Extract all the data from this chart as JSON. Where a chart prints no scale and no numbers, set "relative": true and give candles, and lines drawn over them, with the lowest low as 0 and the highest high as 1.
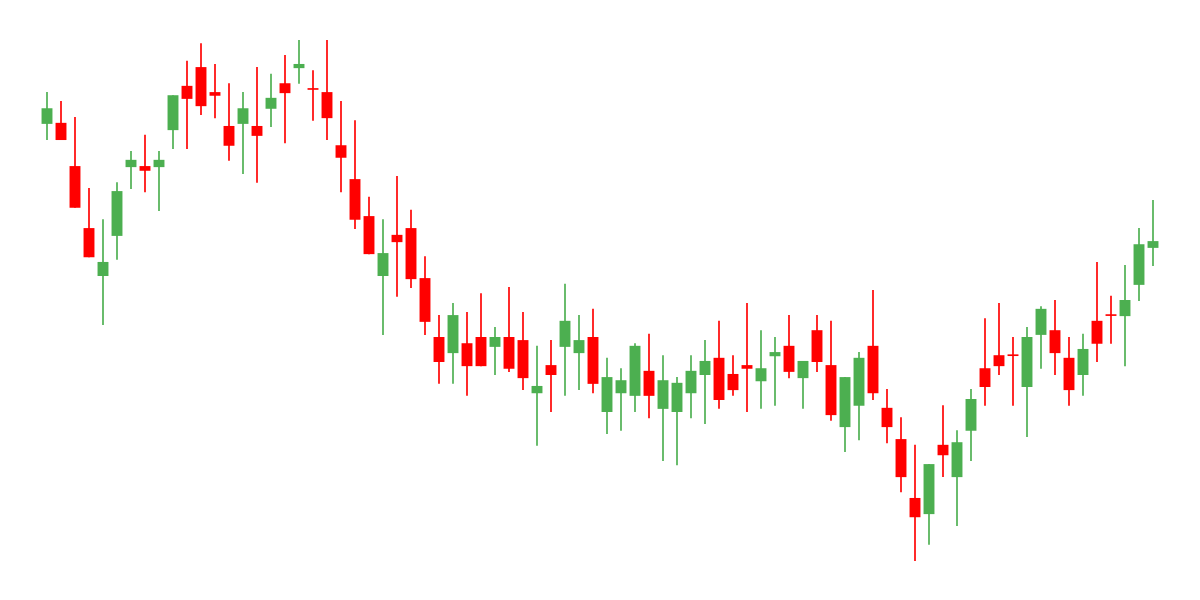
{
  "chart_data": {
    "type": "candlestick",
    "relative": true,
    "categories": [
      null,
      null,
      null,
      null,
      null,
      null,
      null,
      null,
      null,
      null,
      null,
      null,
      null,
      null,
      null,
      null,
      null,
      null,
      null,
      null,
      null,
      null,
      null,
      null,
      null,
      null,
      null,
      null,
      null,
      null,
      null,
      null,
      null,
      null,
      null,
      null,
      null,
      null,
      null,
      null,
      null,
      null,
      null,
      null,
      null,
      null,
      null,
      null,
      null,
      null,
      null,
      null,
      null,
      null,
      null,
      null,
      null,
      null,
      null,
      null,
      null,
      null,
      null,
      null,
      null,
      null,
      null,
      null,
      null,
      null,
      null,
      null,
      null,
      null,
      null,
      null,
      null,
      null,
      null,
      null
    ],
    "ohlc": [
      [
        0.839,
        0.9,
        0.808,
        0.869
      ],
      [
        0.841,
        0.883,
        0.808,
        0.808
      ],
      [
        0.758,
        0.852,
        0.678,
        0.678
      ],
      [
        0.639,
        0.716,
        0.583,
        0.583
      ],
      [
        0.547,
        0.656,
        0.453,
        0.574
      ],
      [
        0.624,
        0.727,
        0.578,
        0.71
      ],
      [
        0.756,
        0.787,
        0.714,
        0.77
      ],
      [
        0.758,
        0.818,
        0.708,
        0.749
      ],
      [
        0.756,
        0.787,
        0.672,
        0.77
      ],
      [
        0.827,
        0.894,
        0.791,
        0.894
      ],
      [
        0.912,
        0.96,
        0.791,
        0.887
      ],
      [
        0.948,
        0.994,
        0.856,
        0.873
      ],
      [
        0.9,
        0.954,
        0.85,
        0.893
      ],
      [
        0.835,
        0.917,
        0.768,
        0.797
      ],
      [
        0.839,
        0.9,
        0.743,
        0.869
      ],
      [
        0.835,
        0.948,
        0.726,
        0.816
      ],
      [
        0.868,
        0.935,
        0.833,
        0.889
      ],
      [
        0.917,
        0.971,
        0.802,
        0.898
      ],
      [
        0.946,
        1.0,
        0.916,
        0.954
      ],
      [
        0.906,
        0.942,
        0.845,
        0.906
      ],
      [
        0.9,
        1.0,
        0.808,
        0.85
      ],
      [
        0.798,
        0.883,
        0.708,
        0.774
      ],
      [
        0.733,
        0.846,
        0.637,
        0.655
      ],
      [
        0.662,
        0.699,
        0.589,
        0.589
      ],
      [
        0.547,
        0.656,
        0.434,
        0.591
      ],
      [
        0.626,
        0.739,
        0.507,
        0.612
      ],
      [
        0.639,
        0.674,
        0.524,
        0.541
      ],
      [
        0.543,
        0.585,
        0.434,
        0.459
      ],
      [
        0.43,
        0.472,
        0.34,
        0.382
      ],
      [
        0.399,
        0.495,
        0.34,
        0.472
      ],
      [
        0.418,
        0.478,
        0.317,
        0.374
      ],
      [
        0.43,
        0.514,
        0.374,
        0.374
      ],
      [
        0.411,
        0.449,
        0.357,
        0.43
      ],
      [
        0.43,
        0.526,
        0.363,
        0.369
      ],
      [
        0.424,
        0.478,
        0.328,
        0.351
      ],
      [
        0.322,
        0.413,
        0.221,
        0.336
      ],
      [
        0.376,
        0.424,
        0.286,
        0.357
      ],
      [
        0.411,
        0.532,
        0.317,
        0.461
      ],
      [
        0.399,
        0.472,
        0.328,
        0.424
      ],
      [
        0.43,
        0.484,
        0.322,
        0.34
      ],
      [
        0.286,
        0.39,
        0.244,
        0.353
      ],
      [
        0.322,
        0.37,
        0.25,
        0.347
      ],
      [
        0.317,
        0.418,
        0.286,
        0.413
      ],
      [
        0.365,
        0.436,
        0.274,
        0.317
      ],
      [
        0.292,
        0.395,
        0.192,
        0.347
      ],
      [
        0.286,
        0.353,
        0.184,
        0.342
      ],
      [
        0.322,
        0.395,
        0.274,
        0.365
      ],
      [
        0.357,
        0.424,
        0.263,
        0.384
      ],
      [
        0.39,
        0.461,
        0.292,
        0.309
      ],
      [
        0.359,
        0.395,
        0.317,
        0.328
      ],
      [
        0.376,
        0.495,
        0.286,
        0.369
      ],
      [
        0.345,
        0.443,
        0.292,
        0.37
      ],
      [
        0.393,
        0.43,
        0.298,
        0.401
      ],
      [
        0.413,
        0.472,
        0.351,
        0.363
      ],
      [
        0.351,
        0.384,
        0.292,
        0.384
      ],
      [
        0.443,
        0.472,
        0.363,
        0.382
      ],
      [
        0.376,
        0.461,
        0.269,
        0.28
      ],
      [
        0.257,
        0.353,
        0.209,
        0.353
      ],
      [
        0.298,
        0.401,
        0.232,
        0.39
      ],
      [
        0.413,
        0.52,
        0.309,
        0.322
      ],
      [
        0.294,
        0.33,
        0.226,
        0.257
      ],
      [
        0.234,
        0.276,
        0.132,
        0.161
      ],
      [
        0.121,
        0.223,
        0.0,
        0.084
      ],
      [
        0.09,
        0.186,
        0.031,
        0.186
      ],
      [
        0.223,
        0.299,
        0.161,
        0.203
      ],
      [
        0.161,
        0.251,
        0.067,
        0.228
      ],
      [
        0.25,
        0.33,
        0.192,
        0.311
      ],
      [
        0.37,
        0.466,
        0.298,
        0.334
      ],
      [
        0.395,
        0.495,
        0.357,
        0.374
      ],
      [
        0.395,
        0.43,
        0.298,
        0.395
      ],
      [
        0.334,
        0.449,
        0.238,
        0.43
      ],
      [
        0.434,
        0.489,
        0.369,
        0.484
      ],
      [
        0.443,
        0.501,
        0.357,
        0.399
      ],
      [
        0.39,
        0.43,
        0.298,
        0.328
      ],
      [
        0.357,
        0.436,
        0.317,
        0.407
      ],
      [
        0.461,
        0.574,
        0.382,
        0.417
      ],
      [
        0.472,
        0.509,
        0.417,
        0.472
      ],
      [
        0.47,
        0.568,
        0.374,
        0.501
      ],
      [
        0.53,
        0.639,
        0.499,
        0.608
      ],
      [
        0.601,
        0.693,
        0.566,
        0.614
      ]
    ],
    "colors": [
      "#4caf50",
      "#ff0000",
      "#ff0000",
      "#ff0000",
      "#4caf50",
      "#4caf50",
      "#4caf50",
      "#ff0000",
      "#4caf50",
      "#4caf50",
      "#ff0000",
      "#ff0000",
      "#ff0000",
      "#ff0000",
      "#4caf50",
      "#ff0000",
      "#4caf50",
      "#ff0000",
      "#4caf50",
      "#ff0000",
      "#ff0000",
      "#ff0000",
      "#ff0000",
      "#ff0000",
      "#4caf50",
      "#ff0000",
      "#ff0000",
      "#ff0000",
      "#ff0000",
      "#4caf50",
      "#ff0000",
      "#ff0000",
      "#4caf50",
      "#ff0000",
      "#ff0000",
      "#4caf50",
      "#ff0000",
      "#4caf50",
      "#4caf50",
      "#ff0000",
      "#4caf50",
      "#4caf50",
      "#4caf50",
      "#ff0000",
      "#4caf50",
      "#4caf50",
      "#4caf50",
      "#4caf50",
      "#ff0000",
      "#ff0000",
      "#ff0000",
      "#4caf50",
      "#4caf50",
      "#ff0000",
      "#4caf50",
      "#ff0000",
      "#ff0000",
      "#4caf50",
      "#4caf50",
      "#ff0000",
      "#ff0000",
      "#ff0000",
      "#ff0000",
      "#4caf50",
      "#ff0000",
      "#4caf50",
      "#4caf50",
      "#ff0000",
      "#ff0000",
      "#ff0000",
      "#4caf50",
      "#4caf50",
      "#ff0000",
      "#ff0000",
      "#4caf50",
      "#ff0000",
      "#ff0000",
      "#4caf50",
      "#4caf50",
      "#4caf50"
    ]
  }
}
